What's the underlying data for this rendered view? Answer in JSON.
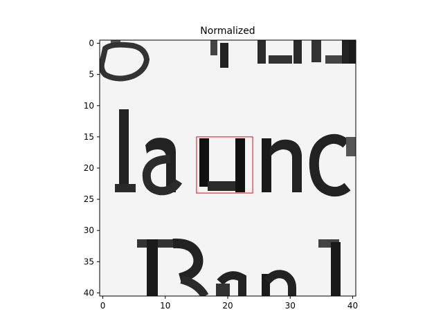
{
  "chart_data": {
    "type": "heatmap",
    "title": "Normalized",
    "xlabel": "",
    "ylabel": "",
    "grid": false,
    "colormap": "gray",
    "xlim": [
      -0.5,
      40.5
    ],
    "ylim": [
      40.5,
      -0.5
    ],
    "x_ticks": [
      0,
      10,
      20,
      30,
      40
    ],
    "y_ticks": [
      0,
      5,
      10,
      15,
      20,
      25,
      30,
      35,
      40
    ],
    "x_tick_labels": [
      "0",
      "10",
      "20",
      "30",
      "40"
    ],
    "y_tick_labels": [
      "0",
      "5",
      "10",
      "15",
      "20",
      "25",
      "30",
      "35",
      "40"
    ],
    "image_content": "grayscale scan of printed text fragment reading 'launc' with partial text lines above and below",
    "highlight_box": {
      "x0": 15,
      "y0": 15,
      "x1": 24,
      "y1": 24,
      "color": "#ff0000"
    }
  }
}
